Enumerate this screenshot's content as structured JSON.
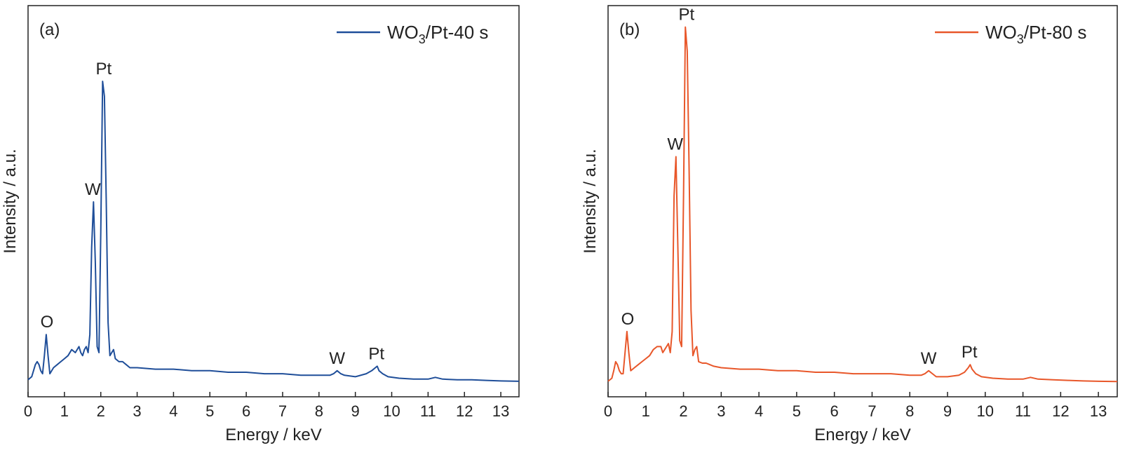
{
  "chart_data": [
    {
      "type": "line",
      "panel_label": "(a)",
      "xlabel": "Energy / keV",
      "ylabel": "Intensity / a.u.",
      "xlim": [
        0,
        13.5
      ],
      "xticks": [
        0,
        1,
        2,
        3,
        4,
        5,
        6,
        7,
        8,
        9,
        10,
        11,
        12,
        13
      ],
      "ylim": [
        0,
        120
      ],
      "yticks_visible": false,
      "grid": false,
      "legend_position": "top-right",
      "series": [
        {
          "name_main": "WO",
          "name_sub": "3",
          "name_rest": "/Pt-40 s",
          "color": "#1f4e99",
          "x": [
            0,
            0.1,
            0.15,
            0.2,
            0.25,
            0.3,
            0.35,
            0.4,
            0.45,
            0.5,
            0.55,
            0.6,
            0.7,
            0.8,
            0.9,
            1.0,
            1.1,
            1.2,
            1.3,
            1.4,
            1.45,
            1.5,
            1.55,
            1.6,
            1.65,
            1.7,
            1.75,
            1.8,
            1.85,
            1.9,
            1.95,
            2.0,
            2.05,
            2.1,
            2.15,
            2.2,
            2.25,
            2.3,
            2.35,
            2.4,
            2.5,
            2.6,
            2.7,
            2.8,
            3.0,
            3.5,
            4.0,
            4.5,
            5.0,
            5.5,
            6.0,
            6.5,
            7.0,
            7.5,
            8.0,
            8.3,
            8.4,
            8.5,
            8.6,
            8.7,
            9.0,
            9.3,
            9.45,
            9.55,
            9.6,
            9.65,
            9.75,
            9.9,
            10.2,
            10.6,
            11.0,
            11.2,
            11.4,
            11.8,
            12.2,
            12.6,
            13.0,
            13.5
          ],
          "y": [
            1,
            2,
            4,
            6,
            7,
            6,
            4,
            3,
            9,
            16,
            9,
            3,
            5,
            6,
            7,
            8,
            9,
            11,
            10,
            12,
            10,
            9,
            11,
            12,
            10,
            16,
            45,
            60,
            40,
            12,
            10,
            50,
            100,
            95,
            60,
            20,
            9,
            10,
            11,
            8,
            7,
            7,
            6,
            5,
            5,
            4.5,
            4.5,
            4,
            4,
            3.5,
            3.5,
            3,
            3,
            2.5,
            2.5,
            2.5,
            3,
            4,
            3,
            2.5,
            2,
            3,
            4,
            5,
            5.5,
            4,
            3,
            2,
            1.5,
            1.2,
            1.2,
            1.8,
            1.2,
            1,
            1,
            0.8,
            0.6,
            0.5
          ]
        }
      ],
      "annotations": [
        {
          "text": "O",
          "x": 0.52,
          "y": 16
        },
        {
          "text": "W",
          "x": 1.78,
          "y": 60
        },
        {
          "text": "Pt",
          "x": 2.08,
          "y": 100
        },
        {
          "text": "W",
          "x": 8.5,
          "y": 4
        },
        {
          "text": "Pt",
          "x": 9.58,
          "y": 5.5
        }
      ]
    },
    {
      "type": "line",
      "panel_label": "(b)",
      "xlabel": "Energy / keV",
      "ylabel": "Intensity / a.u.",
      "xlim": [
        0,
        13.5
      ],
      "xticks": [
        0,
        1,
        2,
        3,
        4,
        5,
        6,
        7,
        8,
        9,
        10,
        11,
        12,
        13
      ],
      "ylim": [
        0,
        120
      ],
      "yticks_visible": false,
      "grid": false,
      "legend_position": "top-right",
      "series": [
        {
          "name_main": "WO",
          "name_sub": "3",
          "name_rest": "/Pt-80 s",
          "color": "#e8572a",
          "x": [
            0,
            0.1,
            0.15,
            0.2,
            0.25,
            0.3,
            0.35,
            0.4,
            0.45,
            0.5,
            0.55,
            0.6,
            0.7,
            0.8,
            0.9,
            1.0,
            1.1,
            1.2,
            1.3,
            1.4,
            1.45,
            1.5,
            1.55,
            1.6,
            1.65,
            1.7,
            1.75,
            1.8,
            1.85,
            1.9,
            1.95,
            2.0,
            2.05,
            2.1,
            2.15,
            2.2,
            2.25,
            2.3,
            2.35,
            2.4,
            2.5,
            2.6,
            2.7,
            2.8,
            3.0,
            3.5,
            4.0,
            4.5,
            5.0,
            5.5,
            6.0,
            6.5,
            7.0,
            7.5,
            8.0,
            8.3,
            8.4,
            8.5,
            8.6,
            8.7,
            9.0,
            9.3,
            9.45,
            9.55,
            9.6,
            9.65,
            9.75,
            9.9,
            10.2,
            10.6,
            11.0,
            11.2,
            11.4,
            11.8,
            12.2,
            12.6,
            13.0,
            13.5
          ],
          "y": [
            0.5,
            1.5,
            4,
            7,
            6,
            4,
            3,
            3,
            10,
            17,
            10,
            4,
            5,
            6,
            7,
            8,
            9,
            11,
            12,
            12,
            10,
            11,
            12,
            13,
            10,
            17,
            62,
            75,
            45,
            14,
            12,
            62,
            118,
            110,
            70,
            24,
            9,
            11,
            12,
            7,
            6.5,
            6.5,
            6,
            5.5,
            5,
            4.5,
            4.5,
            4,
            4,
            3.5,
            3.5,
            3,
            3,
            3,
            2.5,
            2.5,
            3,
            4,
            3,
            2,
            2,
            2.5,
            3.5,
            5,
            6,
            4.5,
            3,
            2,
            1.5,
            1.2,
            1.2,
            1.8,
            1.2,
            1,
            0.8,
            0.6,
            0.5,
            0.4
          ]
        }
      ],
      "annotations": [
        {
          "text": "O",
          "x": 0.52,
          "y": 17
        },
        {
          "text": "W",
          "x": 1.78,
          "y": 75
        },
        {
          "text": "Pt",
          "x": 2.08,
          "y": 118
        },
        {
          "text": "W",
          "x": 8.5,
          "y": 4
        },
        {
          "text": "Pt",
          "x": 9.58,
          "y": 6
        }
      ]
    }
  ]
}
